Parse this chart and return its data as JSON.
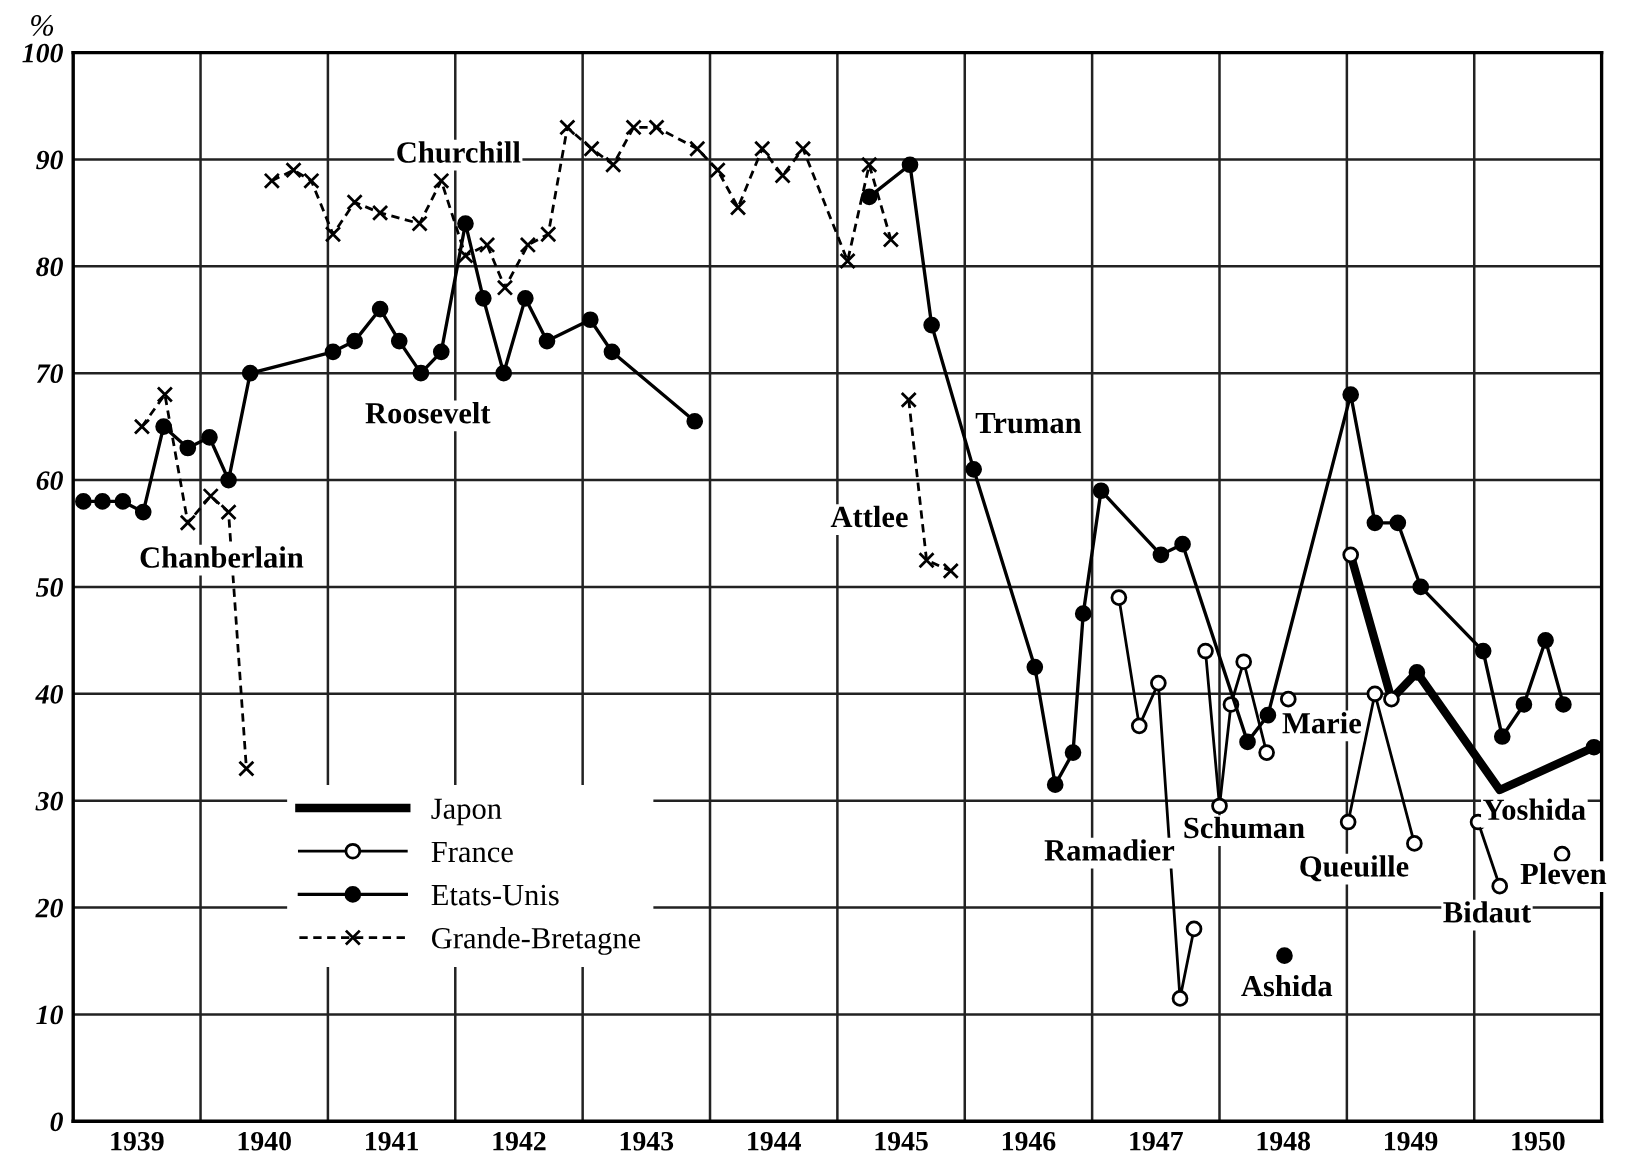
{
  "chart_data": {
    "type": "line",
    "ylabel": "%",
    "xlim": [
      1939,
      1951
    ],
    "ylim": [
      0,
      100
    ],
    "xticks": [
      {
        "value": 1939,
        "label": null
      },
      {
        "value": 1939.5,
        "label": "1939"
      },
      {
        "value": 1940,
        "label": null
      },
      {
        "value": 1940.5,
        "label": "1940"
      },
      {
        "value": 1941,
        "label": null
      },
      {
        "value": 1941.5,
        "label": "1941"
      },
      {
        "value": 1942,
        "label": null
      },
      {
        "value": 1942.5,
        "label": "1942"
      },
      {
        "value": 1943,
        "label": null
      },
      {
        "value": 1943.5,
        "label": "1943"
      },
      {
        "value": 1944,
        "label": null
      },
      {
        "value": 1944.5,
        "label": "1944"
      },
      {
        "value": 1945,
        "label": null
      },
      {
        "value": 1945.5,
        "label": "1945"
      },
      {
        "value": 1946,
        "label": null
      },
      {
        "value": 1946.5,
        "label": "1946"
      },
      {
        "value": 1947,
        "label": null
      },
      {
        "value": 1947.5,
        "label": "1947"
      },
      {
        "value": 1948,
        "label": null
      },
      {
        "value": 1948.5,
        "label": "1948"
      },
      {
        "value": 1949,
        "label": null
      },
      {
        "value": 1949.5,
        "label": "1949"
      },
      {
        "value": 1950,
        "label": null
      },
      {
        "value": 1950.5,
        "label": "1950"
      },
      {
        "value": 1951,
        "label": null
      }
    ],
    "yticks": [
      0,
      10,
      20,
      30,
      40,
      50,
      60,
      70,
      80,
      90,
      100
    ],
    "grid": true,
    "legend": "lower left",
    "series": [
      {
        "name": "Japon",
        "color": "#000000",
        "marker": "none",
        "line_style": "solid",
        "x": [
          1949.03,
          1949.35,
          1949.55,
          1950.2,
          1950.94
        ],
        "values": [
          53,
          39.5,
          42,
          31,
          35
        ]
      },
      {
        "type": "scatter",
        "color": "#000000",
        "marker": "circle",
        "x": [
          1948.51,
          1949.55,
          1950.94
        ],
        "values": [
          15.5,
          42,
          35
        ]
      },
      {
        "type": "scatter",
        "color": "#000000",
        "marker": "circle",
        "x": [
          1949.03,
          1949.35
        ],
        "values": [
          53,
          39.5
        ]
      },
      {
        "name": "France",
        "color": "#000000",
        "marker": "circle",
        "line_style": "solid",
        "x": [
          1947.21,
          1947.37,
          1947.52,
          1947.69,
          1947.8,
          1947.85,
          1947.89,
          1948.0,
          1948.09,
          1948.19,
          1948.37,
          1948.45,
          1948.54,
          1948.8,
          1949.01,
          1949.22,
          1949.53,
          1949.8,
          1950.03,
          1950.2,
          1950.45,
          1950.69
        ],
        "values": [
          49,
          37,
          41,
          11.5,
          18,
          null,
          44,
          29.5,
          39,
          43,
          34.5,
          null,
          39.5,
          null,
          28,
          40,
          26,
          null,
          28,
          22,
          null,
          25
        ]
      },
      {
        "name": "Etats-Unis",
        "color": "#000000",
        "marker": "circle",
        "line_style": "solid",
        "x": [
          1939.08,
          1939.23,
          1939.39,
          1939.55,
          1939.71,
          1939.9,
          1940.07,
          1940.22,
          1940.39,
          1941.04,
          1941.21,
          1941.41,
          1941.56,
          1941.73,
          1941.89,
          1942.08,
          1942.22,
          1942.38,
          1942.55,
          1942.72,
          1943.06,
          1943.23,
          1943.88,
          1944.5,
          1945.25,
          1945.57,
          1945.74,
          1946.07,
          1946.55,
          1946.71,
          1946.85,
          1946.93,
          1947.07,
          1947.54,
          1947.71,
          1948.22,
          1948.38,
          1949.03,
          1949.22,
          1949.4,
          1949.58,
          1950.07,
          1950.22,
          1950.39,
          1950.56,
          1950.7
        ],
        "values": [
          58,
          58,
          58,
          57,
          65,
          63,
          64,
          60,
          70,
          72,
          73,
          76,
          73,
          70,
          72,
          84,
          77,
          70,
          77,
          73,
          75,
          72,
          65.5,
          null,
          86.5,
          89.5,
          74.5,
          61,
          42.5,
          31.5,
          34.5,
          47.5,
          59,
          53,
          54,
          35.5,
          38,
          68,
          56,
          56,
          50,
          44,
          36,
          39,
          45,
          39
        ]
      },
      {
        "name": "Grande-Bretagne",
        "color": "#000000",
        "marker": "cross",
        "line_style": "dashed",
        "x": [
          1939.54,
          1939.72,
          1939.9,
          1940.08,
          1940.22,
          1940.36,
          1940.46,
          1940.56,
          1940.73,
          1940.87,
          1941.04,
          1941.21,
          1941.41,
          1941.72,
          1941.89,
          1942.08,
          1942.25,
          1942.39,
          1942.57,
          1942.73,
          1942.88,
          1943.07,
          1943.24,
          1943.4,
          1943.58,
          1943.9,
          1944.06,
          1944.22,
          1944.41,
          1944.57,
          1944.73,
          1945.08,
          1945.25,
          1945.42,
          1945.5,
          1945.56,
          1945.7,
          1945.89
        ],
        "values": [
          65,
          68,
          56,
          58.5,
          57,
          33,
          null,
          88,
          89,
          88,
          83,
          86,
          85,
          84,
          88,
          81,
          82,
          78,
          82,
          83,
          93,
          91,
          89.5,
          93,
          93,
          91,
          89,
          85.5,
          91,
          88.5,
          91,
          80.5,
          89.5,
          82.5,
          null,
          67.5,
          52.5,
          51.5
        ]
      }
    ],
    "annotations": [
      "Chanberlain",
      "Churchill",
      "Roosevelt",
      "Attlee",
      "Truman",
      "Ramadier",
      "Schuman",
      "Marie",
      "Ashida",
      "Queuille",
      "Bidaut",
      "Yoshida",
      "Pleven"
    ]
  }
}
